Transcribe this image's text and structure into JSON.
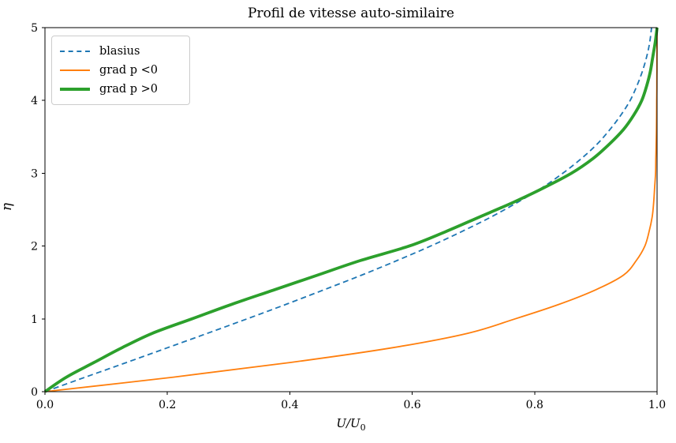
{
  "title": "Profil de vitesse auto-similaire",
  "labels": {
    "xlabel_main": "U/U",
    "xlabel_sub": "0",
    "ylabel": "η"
  },
  "colors": {
    "blasius": "#1f77b4",
    "grad_p_neg": "#ff7f0e",
    "grad_p_pos": "#2ca02c",
    "spine": "#000000",
    "legend_border": "#cccccc",
    "background": "#ffffff"
  },
  "chart_data": {
    "type": "line",
    "title": "Profil de vitesse auto-similaire",
    "xlabel": "U/U_0",
    "ylabel": "η",
    "xlim": [
      0.0,
      1.0
    ],
    "ylim": [
      0,
      5
    ],
    "x_ticks": [
      "0.0",
      "0.2",
      "0.4",
      "0.6",
      "0.8",
      "1.0"
    ],
    "y_ticks": [
      "0",
      "1",
      "2",
      "3",
      "4",
      "5"
    ],
    "grid": false,
    "legend_position": "upper left",
    "eta": [
      0,
      0.2,
      0.4,
      0.6,
      0.8,
      1.0,
      1.2,
      1.4,
      1.6,
      1.8,
      2.0,
      2.2,
      2.4,
      2.6,
      2.8,
      3.0,
      3.2,
      3.4,
      3.6,
      3.8,
      4.0,
      4.2,
      4.4,
      4.6,
      4.8,
      5.0
    ],
    "series": [
      {
        "id": "blasius",
        "name": "blasius",
        "color": "#1f77b4",
        "style": "dashed",
        "linewidth": 1.8,
        "U": [
          0,
          0.066,
          0.133,
          0.199,
          0.265,
          0.33,
          0.394,
          0.456,
          0.517,
          0.575,
          0.63,
          0.681,
          0.729,
          0.772,
          0.812,
          0.846,
          0.876,
          0.902,
          0.923,
          0.941,
          0.956,
          0.967,
          0.976,
          0.983,
          0.988,
          0.991
        ]
      },
      {
        "id": "grad-p-neg",
        "name": "grad p <0",
        "color": "#ff7f0e",
        "style": "solid",
        "linewidth": 1.8,
        "U": [
          0,
          0.21,
          0.4,
          0.565,
          0.69,
          0.768,
          0.84,
          0.9,
          0.945,
          0.966,
          0.98,
          0.987,
          0.992,
          0.9945,
          0.996,
          0.9975,
          0.998,
          0.9985,
          0.999,
          0.9992,
          0.9994,
          0.9996,
          0.9997,
          0.9998,
          0.9999,
          1.0
        ]
      },
      {
        "id": "grad-p-pos",
        "name": "grad p >0",
        "color": "#2ca02c",
        "style": "solid",
        "linewidth": 3.8,
        "U": [
          0,
          0.035,
          0.08,
          0.125,
          0.175,
          0.24,
          0.305,
          0.375,
          0.445,
          0.515,
          0.595,
          0.655,
          0.71,
          0.765,
          0.815,
          0.86,
          0.895,
          0.922,
          0.945,
          0.962,
          0.975,
          0.983,
          0.989,
          0.993,
          0.997,
          1.0
        ]
      }
    ]
  },
  "legend": {
    "items": [
      {
        "label": "blasius"
      },
      {
        "label": "grad p <0"
      },
      {
        "label": "grad p >0"
      }
    ]
  }
}
